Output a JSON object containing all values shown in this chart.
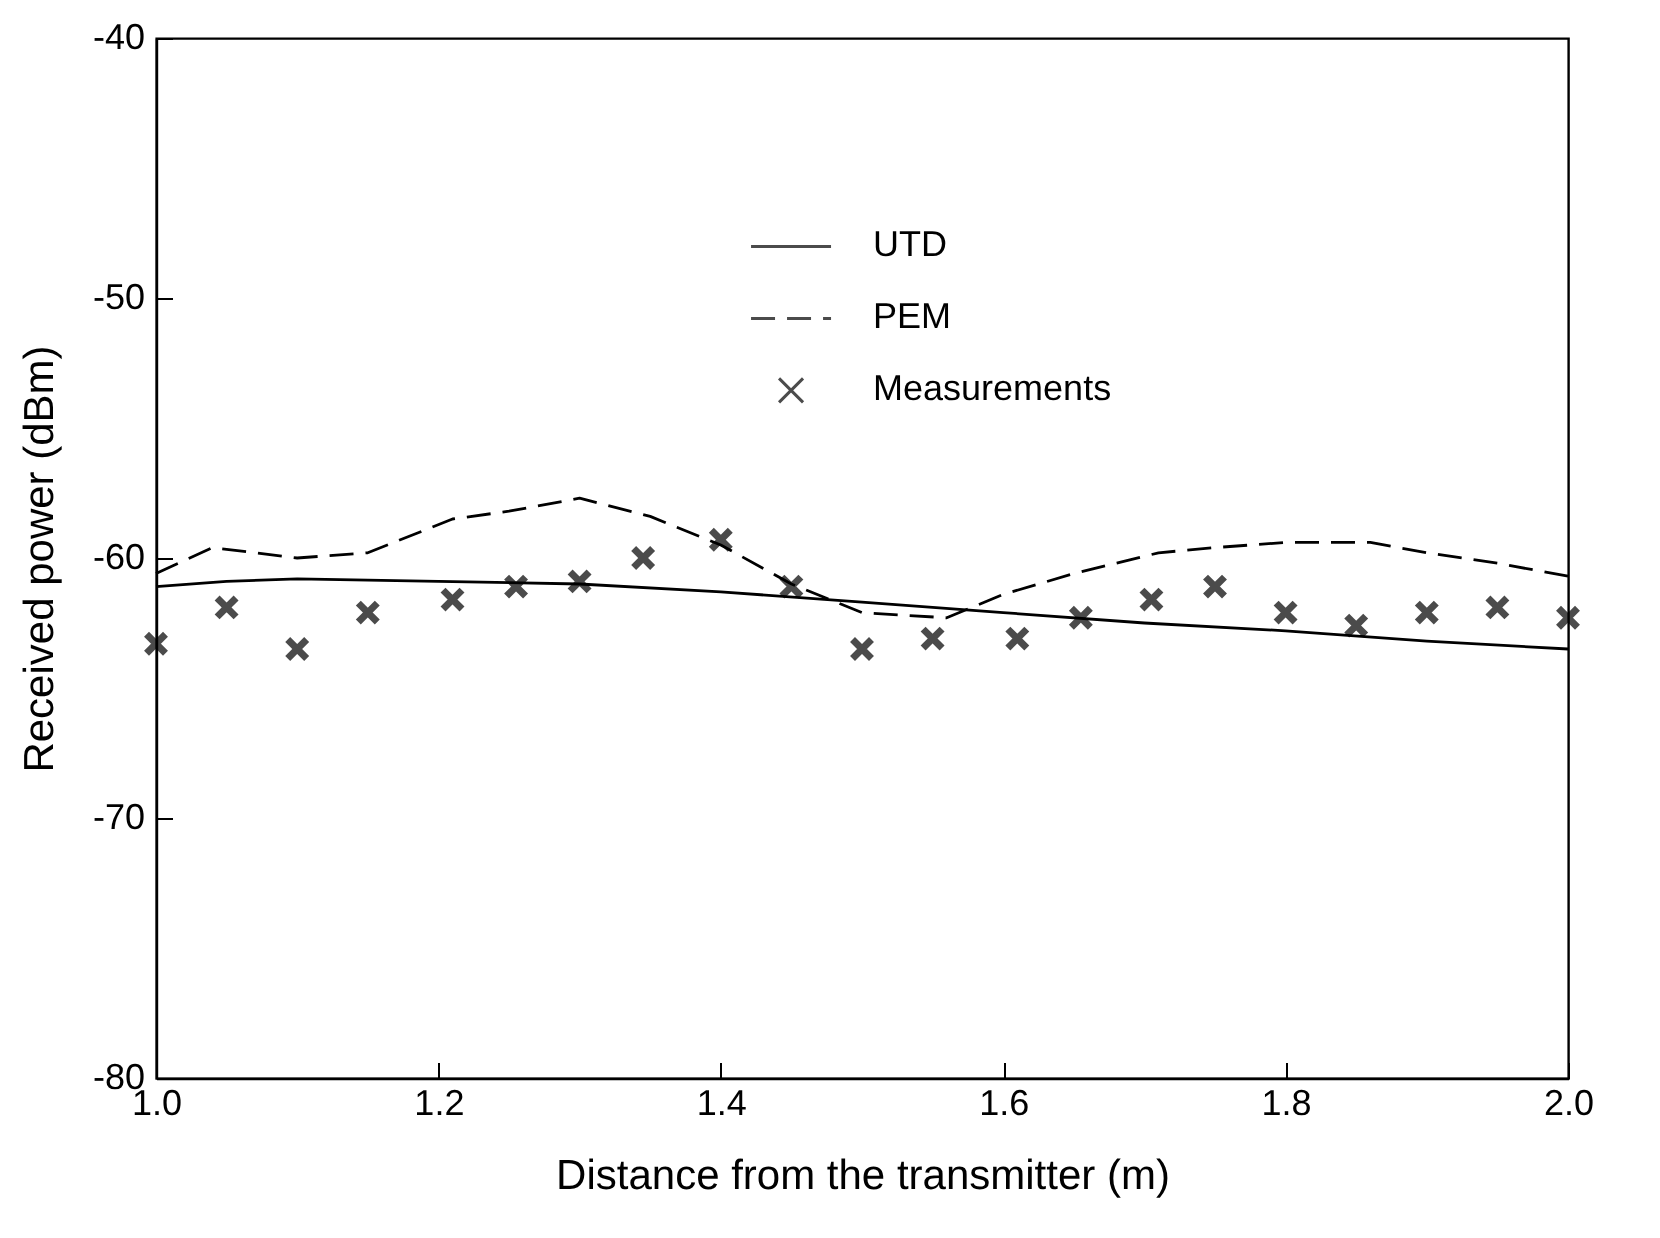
{
  "chart_data": {
    "type": "line",
    "xlabel": "Distance from the transmitter (m)",
    "ylabel": "Received power (dBm)",
    "xlim": [
      1.0,
      2.0
    ],
    "xticks": [
      {
        "value": 1.0,
        "label": "1.0"
      },
      1.2,
      1.4,
      1.6,
      1.8,
      {
        "value": 2.0,
        "label": "2.0"
      }
    ],
    "ylim": [
      -80,
      -40
    ],
    "yticks": [
      -80,
      -70,
      -60,
      -50,
      -40
    ],
    "grid": false,
    "legend": "top",
    "series": [
      {
        "name": "UTD",
        "type": "line",
        "color": "#000000",
        "line_style": "solid",
        "x": [
          1.0,
          1.05,
          1.1,
          1.2,
          1.3,
          1.4,
          1.5,
          1.6,
          1.7,
          1.8,
          1.9,
          2.0
        ],
        "values": [
          -61.1,
          -60.9,
          -60.8,
          -60.9,
          -61.0,
          -61.3,
          -61.7,
          -62.1,
          -62.5,
          -62.8,
          -63.2,
          -63.5
        ]
      },
      {
        "name": "PEM",
        "type": "line",
        "color": "#000000",
        "line_style": "dashed",
        "x": [
          1.0,
          1.04,
          1.1,
          1.15,
          1.21,
          1.25,
          1.3,
          1.35,
          1.4,
          1.45,
          1.5,
          1.56,
          1.6,
          1.65,
          1.71,
          1.75,
          1.8,
          1.86,
          1.9,
          1.95,
          2.0
        ],
        "values": [
          -60.6,
          -59.6,
          -60.0,
          -59.8,
          -58.5,
          -58.2,
          -57.7,
          -58.4,
          -59.5,
          -61.0,
          -62.1,
          -62.3,
          -61.4,
          -60.6,
          -59.8,
          -59.6,
          -59.4,
          -59.4,
          -59.8,
          -60.2,
          -60.7
        ]
      },
      {
        "name": "Measurements",
        "type": "scatter",
        "color": "#000000",
        "marker": "cross",
        "x": [
          1.0,
          1.05,
          1.1,
          1.15,
          1.21,
          1.255,
          1.3,
          1.345,
          1.4,
          1.45,
          1.5,
          1.55,
          1.61,
          1.655,
          1.705,
          1.75,
          1.8,
          1.85,
          1.9,
          1.95,
          2.0
        ],
        "values": [
          -63.3,
          -61.9,
          -63.5,
          -62.1,
          -61.6,
          -61.1,
          -60.9,
          -60.0,
          -59.3,
          -61.1,
          -63.5,
          -63.1,
          -63.1,
          -62.3,
          -61.6,
          -61.1,
          -62.1,
          -62.6,
          -62.1,
          -61.9,
          -62.3
        ]
      }
    ]
  }
}
